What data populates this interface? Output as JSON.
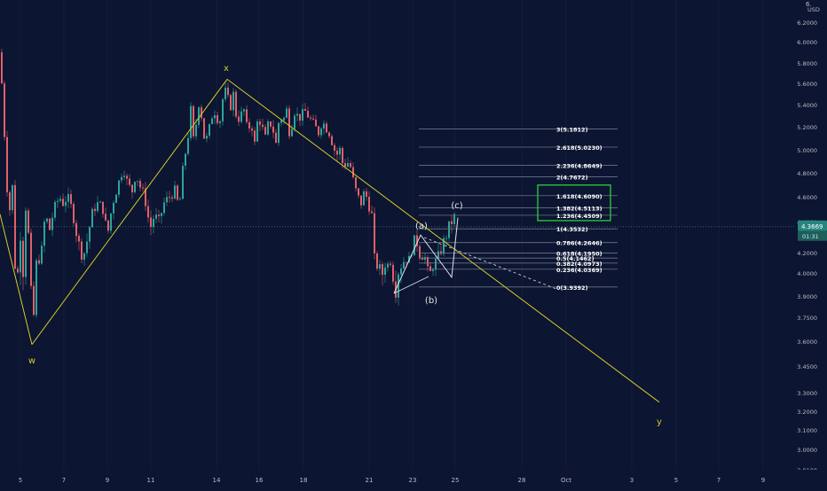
{
  "colors": {
    "background": "#0c1531",
    "up_candle": "#2ea49a",
    "down_candle": "#e0606a",
    "wave_line": "#d4cc2a",
    "wave_label": "#d4cc2a",
    "fib_line": "#6b7489",
    "fib_text": "#ffffff",
    "target_box": "#28c33a",
    "price_badge": "#26867f",
    "axis_text": "#b8bdc8"
  },
  "price_axis": {
    "unit": "USD",
    "top_label": "6.",
    "last_price": "4.3669",
    "countdown": "01:31"
  },
  "chart_data": {
    "type": "candlestick",
    "title": "",
    "ylim": [
      2.86,
      6.44
    ],
    "y_ticks": [
      "6.2000",
      "6.0000",
      "5.8000",
      "5.6000",
      "5.4000",
      "5.2000",
      "5.0000",
      "4.8000",
      "4.6000",
      "4.4000",
      "4.2000",
      "4.0000",
      "3.9000",
      "3.7500",
      "3.6000",
      "3.4500",
      "3.3000",
      "3.2000",
      "3.1000",
      "3.0000",
      "2.9100"
    ],
    "x_ticks": [
      "5",
      "7",
      "9",
      "11",
      "14",
      "16",
      "18",
      "21",
      "23",
      "25",
      "28",
      "Oct",
      "3",
      "5",
      "7",
      "9"
    ],
    "wave_labels": [
      "x",
      "w",
      "y",
      "(a)",
      "(b)",
      "(c)"
    ],
    "wave_points": [
      {
        "label": "w",
        "date": "Sep 5",
        "price": 3.58
      },
      {
        "label": "x",
        "date": "Sep 14",
        "price": 5.64
      },
      {
        "label": "y",
        "date": "Oct 5",
        "price": 3.22
      }
    ],
    "abc_points": [
      {
        "label": "(a)",
        "date": "Sep 23",
        "price": 4.33
      },
      {
        "label": "(b)",
        "date": "Sep 24",
        "price": 3.97
      },
      {
        "label": "(c)",
        "date": "Sep 25",
        "price": 4.46
      }
    ],
    "fibonacci": [
      {
        "label": "3(5.1812)",
        "price": 5.1812
      },
      {
        "label": "2.618(5.0230)",
        "price": 5.023
      },
      {
        "label": "2.236(4.8649)",
        "price": 4.8649
      },
      {
        "label": "2(4.7672)",
        "price": 4.7672
      },
      {
        "label": "1.618(4.6090)",
        "price": 4.609
      },
      {
        "label": "1.382(4.5113)",
        "price": 4.5113
      },
      {
        "label": "1.236(4.4509)",
        "price": 4.4509
      },
      {
        "label": "1(4.3532)",
        "price": 4.3532
      },
      {
        "label": "0.786(4.2646)",
        "price": 4.2646
      },
      {
        "label": "0.618(4.1950)",
        "price": 4.195
      },
      {
        "label": "0.5(4.1462)",
        "price": 4.1462
      },
      {
        "label": "0.382(4.0973)",
        "price": 4.0973
      },
      {
        "label": "0.236(4.0369)",
        "price": 4.0369
      },
      {
        "label": "0(3.9392)",
        "price": 3.9392
      }
    ],
    "target_zone": {
      "from": 4.4509,
      "to": 4.609
    },
    "last_price": 4.3669
  }
}
